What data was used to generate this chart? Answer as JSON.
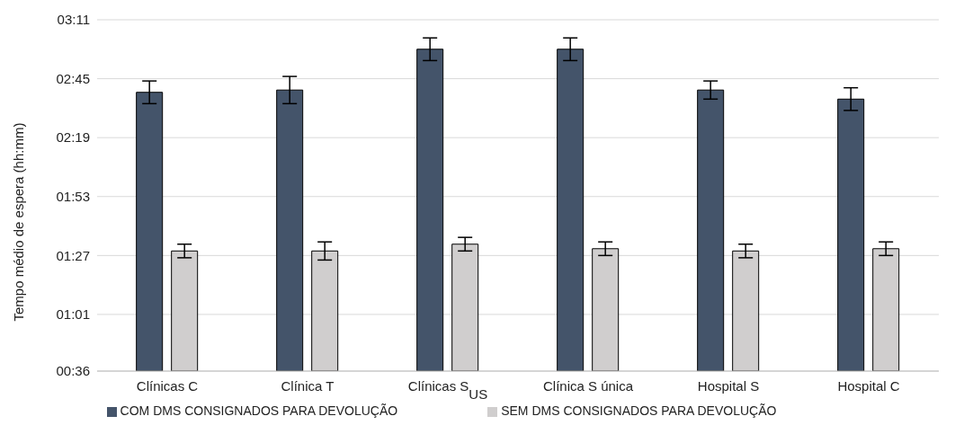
{
  "chart_data": {
    "type": "bar",
    "ylabel": "Tempo médio de espera (hh:mm)",
    "categories": [
      "Clínicas C",
      "Clínica T",
      "Clínicas S$_{US}$",
      "Clínica S única",
      "Hospital S",
      "Hospital C"
    ],
    "series": [
      {
        "name": "COM DMS CONSIGNADOS PARA DEVOLUÇÃO",
        "color": "#44546a",
        "values": [
          159,
          160,
          178,
          178,
          160,
          156
        ],
        "errors": [
          5,
          6,
          5,
          5,
          4,
          5
        ]
      },
      {
        "name": "SEM DMS CONSIGNADOS PARA DEVOLUÇÃO",
        "color": "#d0cece",
        "values": [
          89,
          89,
          92,
          90,
          89,
          90
        ],
        "errors": [
          3,
          4,
          3,
          3,
          3,
          3
        ]
      }
    ],
    "ylim": [
      36,
      191
    ],
    "yticks": [
      {
        "value": 36,
        "label": "00:36"
      },
      {
        "value": 61,
        "label": "01:01"
      },
      {
        "value": 87,
        "label": "01:27"
      },
      {
        "value": 113,
        "label": "01:53"
      },
      {
        "value": 139,
        "label": "02:19"
      },
      {
        "value": 165,
        "label": "02:45"
      },
      {
        "value": 191,
        "label": "03:11"
      }
    ],
    "grid": "y",
    "legend": "bottom"
  }
}
